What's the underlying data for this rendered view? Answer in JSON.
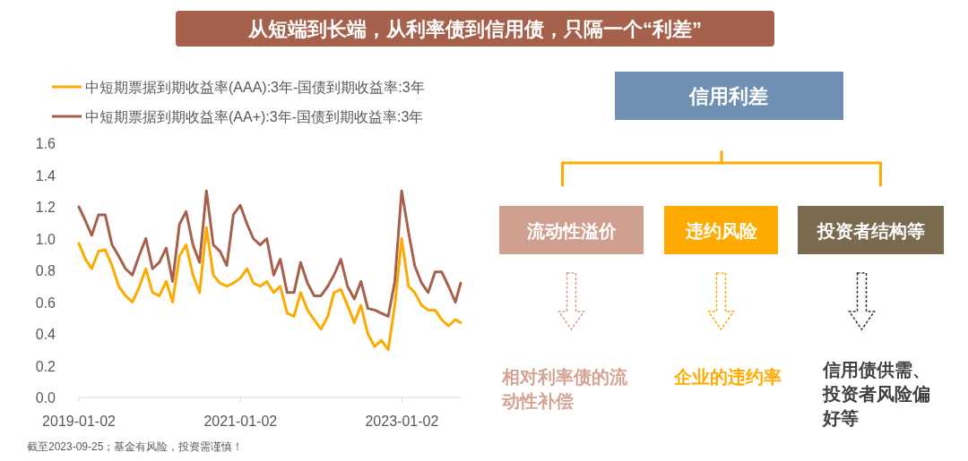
{
  "chart_data": [
    {
      "type": "line",
      "title": "从短端到长端，从利率债到信用债，只隔一个“利差”",
      "legend": "top",
      "xlim": [
        "2019-01-02",
        "2023-09-25"
      ],
      "xticks": [
        "2019-01-02",
        "2021-01-02",
        "2023-01-02"
      ],
      "ylim": [
        0,
        1.6
      ],
      "yticks": [
        {
          "value": 0,
          "label": "0.0"
        },
        {
          "value": 0.2,
          "label": "0.2"
        },
        {
          "value": 0.4,
          "label": "0.4"
        },
        {
          "value": 0.6,
          "label": "0.6"
        },
        {
          "value": 0.8,
          "label": "0.8"
        },
        {
          "value": 1,
          "label": "1.0"
        },
        {
          "value": 1.2,
          "label": "1.2"
        },
        {
          "value": 1.4,
          "label": "1.4"
        },
        {
          "value": 1.6,
          "label": "1.6"
        }
      ],
      "x": [
        "2019-01-02",
        "2019-02",
        "2019-03",
        "2019-04",
        "2019-05",
        "2019-06",
        "2019-07",
        "2019-08",
        "2019-09",
        "2019-10",
        "2019-11",
        "2019-12",
        "2020-01",
        "2020-02",
        "2020-03",
        "2020-04",
        "2020-05",
        "2020-06",
        "2020-07",
        "2020-08",
        "2020-09",
        "2020-10",
        "2020-11",
        "2020-12",
        "2021-01",
        "2021-02",
        "2021-03",
        "2021-04",
        "2021-05",
        "2021-06",
        "2021-07",
        "2021-08",
        "2021-09",
        "2021-10",
        "2021-11",
        "2021-12",
        "2022-01",
        "2022-02",
        "2022-03",
        "2022-04",
        "2022-05",
        "2022-06",
        "2022-07",
        "2022-08",
        "2022-09",
        "2022-10",
        "2022-11",
        "2022-12",
        "2023-01",
        "2023-02",
        "2023-03",
        "2023-04",
        "2023-05",
        "2023-06",
        "2023-07",
        "2023-08",
        "2023-09",
        "2023-09-25"
      ],
      "series": [
        {
          "name": "中短期票据到期收益率(AAA):3年-国债到期收益率:3年",
          "color": "#ffaa00",
          "values": [
            0.97,
            0.87,
            0.81,
            0.92,
            0.93,
            0.83,
            0.7,
            0.64,
            0.6,
            0.69,
            0.81,
            0.66,
            0.64,
            0.73,
            0.6,
            0.89,
            0.96,
            0.77,
            0.66,
            1.07,
            0.77,
            0.72,
            0.7,
            0.72,
            0.75,
            0.81,
            0.72,
            0.7,
            0.73,
            0.66,
            0.7,
            0.53,
            0.51,
            0.66,
            0.55,
            0.49,
            0.43,
            0.51,
            0.66,
            0.68,
            0.58,
            0.47,
            0.58,
            0.4,
            0.32,
            0.36,
            0.3,
            0.58,
            1.0,
            0.7,
            0.66,
            0.58,
            0.55,
            0.55,
            0.49,
            0.45,
            0.49,
            0.47
          ]
        },
        {
          "name": "中短期票据到期收益率(AA+):3年-国债到期收益率:3年",
          "color": "#a5614b",
          "values": [
            1.2,
            1.11,
            1.02,
            1.15,
            1.15,
            0.96,
            0.89,
            0.81,
            0.77,
            0.89,
            1.0,
            0.81,
            0.85,
            0.94,
            0.73,
            1.09,
            1.17,
            0.96,
            0.85,
            1.3,
            0.96,
            0.92,
            0.83,
            1.15,
            1.21,
            1.09,
            1.0,
            0.96,
            1.0,
            0.77,
            0.87,
            0.66,
            0.66,
            0.85,
            0.72,
            0.64,
            0.64,
            0.7,
            0.77,
            0.87,
            0.7,
            0.62,
            0.73,
            0.56,
            0.55,
            0.53,
            0.51,
            0.73,
            1.3,
            1.04,
            0.83,
            0.72,
            0.66,
            0.79,
            0.79,
            0.7,
            0.6,
            0.72
          ]
        }
      ],
      "annotations": [
        "截至2023-09-25；基金有风险，投资需谨慎！"
      ]
    },
    {
      "type": "other",
      "title": "信用利差",
      "categories": [
        "流动性溢价",
        "违约风险",
        "投资者结构等"
      ],
      "colors": [
        "#cf9f90",
        "#ffaa00",
        "#7a6b4f"
      ],
      "annotations": [
        "相对利率债的流动性补偿",
        "企业的违约率",
        "信用债供需、投资者风险偏好等"
      ]
    }
  ]
}
